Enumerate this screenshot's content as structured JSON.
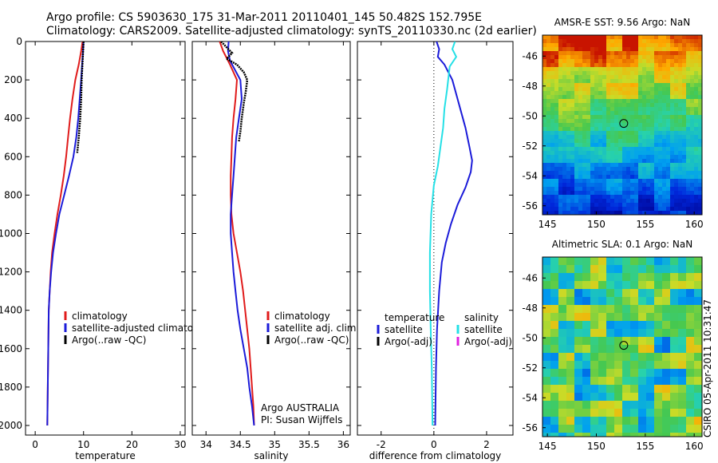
{
  "header": {
    "line1": "Argo profile: CS 5903630_175 31-Mar-2011 20110401_145 50.482S 152.795E",
    "line2": "Climatology: CARS2009. Satellite-adjusted climatology: synTS_20110330.nc (2d earlier)"
  },
  "side_label": "CSIRO 05-Apr-2011 10:31:47",
  "colors": {
    "climatology": "#e01b1b",
    "satellite": "#1b1bd9",
    "argo": "#000000",
    "satellite_salinity": "#24e0e6",
    "argo_adj_salinity": "#e020e0"
  },
  "chart_data": [
    {
      "type": "line",
      "xlabel": "temperature",
      "ylabel": "",
      "xlim": [
        -2,
        31
      ],
      "ylim": [
        2050,
        0
      ],
      "x_ticks": [
        0,
        10,
        20,
        30
      ],
      "y_ticks": [
        0,
        200,
        400,
        600,
        800,
        1000,
        1200,
        1400,
        1600,
        1800,
        2000
      ],
      "legend": [
        "climatology",
        "satellite-adjusted climatology",
        "Argo(..raw -QC)"
      ],
      "series": [
        {
          "name": "climatology",
          "color": "#e01b1b",
          "points": [
            [
              9.8,
              0
            ],
            [
              9.5,
              50
            ],
            [
              9.0,
              120
            ],
            [
              8.3,
              200
            ],
            [
              7.7,
              300
            ],
            [
              7.2,
              400
            ],
            [
              6.8,
              500
            ],
            [
              6.4,
              600
            ],
            [
              5.9,
              700
            ],
            [
              5.3,
              800
            ],
            [
              4.6,
              900
            ],
            [
              4.0,
              1000
            ],
            [
              3.5,
              1100
            ],
            [
              3.2,
              1200
            ],
            [
              3.0,
              1300
            ],
            [
              2.8,
              1400
            ],
            [
              2.7,
              1600
            ],
            [
              2.6,
              1800
            ],
            [
              2.5,
              2000
            ]
          ]
        },
        {
          "name": "satellite-adjusted climatology",
          "color": "#1b1bd9",
          "points": [
            [
              10.0,
              0
            ],
            [
              9.9,
              50
            ],
            [
              9.7,
              120
            ],
            [
              9.5,
              200
            ],
            [
              9.2,
              300
            ],
            [
              8.9,
              400
            ],
            [
              8.5,
              500
            ],
            [
              7.9,
              600
            ],
            [
              7.0,
              700
            ],
            [
              6.0,
              800
            ],
            [
              5.0,
              900
            ],
            [
              4.3,
              1000
            ],
            [
              3.7,
              1100
            ],
            [
              3.3,
              1200
            ],
            [
              3.0,
              1300
            ],
            [
              2.8,
              1400
            ],
            [
              2.7,
              1600
            ],
            [
              2.6,
              1800
            ],
            [
              2.5,
              2000
            ]
          ]
        },
        {
          "name": "Argo(..raw -QC)",
          "color": "#000000",
          "points": [
            [
              10.0,
              0
            ],
            [
              9.9,
              50
            ],
            [
              9.8,
              100
            ],
            [
              9.6,
              200
            ],
            [
              9.5,
              300
            ],
            [
              9.3,
              400
            ],
            [
              9.0,
              500
            ],
            [
              8.7,
              580
            ]
          ]
        }
      ]
    },
    {
      "type": "line",
      "xlabel": "salinity",
      "ylabel": "",
      "xlim": [
        33.8,
        36.1
      ],
      "ylim": [
        2050,
        0
      ],
      "x_ticks": [
        34,
        34.5,
        35,
        35.5,
        36
      ],
      "legend": [
        "climatology",
        "satellite adj. clim.",
        "Argo(..raw -QC)"
      ],
      "annotation": [
        "Argo AUSTRALIA",
        "PI: Susan Wijffels"
      ],
      "series": [
        {
          "name": "climatology",
          "color": "#e01b1b",
          "points": [
            [
              34.2,
              0
            ],
            [
              34.25,
              50
            ],
            [
              34.35,
              120
            ],
            [
              34.45,
              200
            ],
            [
              34.43,
              300
            ],
            [
              34.4,
              400
            ],
            [
              34.38,
              500
            ],
            [
              34.37,
              600
            ],
            [
              34.36,
              700
            ],
            [
              34.36,
              800
            ],
            [
              34.37,
              900
            ],
            [
              34.4,
              1000
            ],
            [
              34.45,
              1100
            ],
            [
              34.5,
              1200
            ],
            [
              34.54,
              1300
            ],
            [
              34.57,
              1400
            ],
            [
              34.6,
              1500
            ],
            [
              34.63,
              1600
            ],
            [
              34.65,
              1700
            ],
            [
              34.67,
              1800
            ],
            [
              34.69,
              1900
            ],
            [
              34.7,
              2000
            ]
          ]
        },
        {
          "name": "satellite adj. clim.",
          "color": "#1b1bd9",
          "points": [
            [
              34.33,
              0
            ],
            [
              34.32,
              50
            ],
            [
              34.35,
              100
            ],
            [
              34.5,
              200
            ],
            [
              34.52,
              300
            ],
            [
              34.48,
              400
            ],
            [
              34.44,
              500
            ],
            [
              34.42,
              600
            ],
            [
              34.4,
              700
            ],
            [
              34.38,
              800
            ],
            [
              34.36,
              900
            ],
            [
              34.36,
              1000
            ],
            [
              34.38,
              1100
            ],
            [
              34.4,
              1200
            ],
            [
              34.43,
              1300
            ],
            [
              34.46,
              1400
            ],
            [
              34.5,
              1500
            ],
            [
              34.55,
              1600
            ],
            [
              34.6,
              1700
            ],
            [
              34.63,
              1800
            ],
            [
              34.67,
              1900
            ],
            [
              34.7,
              2000
            ]
          ]
        },
        {
          "name": "Argo(..raw -QC)",
          "color": "#000000",
          "points": [
            [
              34.22,
              0
            ],
            [
              34.3,
              30
            ],
            [
              34.38,
              60
            ],
            [
              34.3,
              90
            ],
            [
              34.45,
              120
            ],
            [
              34.55,
              160
            ],
            [
              34.6,
              200
            ],
            [
              34.58,
              260
            ],
            [
              34.55,
              320
            ],
            [
              34.52,
              400
            ],
            [
              34.5,
              470
            ],
            [
              34.48,
              520
            ]
          ]
        }
      ]
    },
    {
      "type": "line",
      "xlabel": "difference from climatology",
      "ylabel": "",
      "xlim": [
        -2.9,
        3.0
      ],
      "ylim": [
        2050,
        0
      ],
      "x_ticks": [
        -2,
        0,
        2
      ],
      "legend": [
        {
          "group": "temperature",
          "entries": [
            "satellite",
            "Argo(-adj)"
          ]
        },
        {
          "group": "salinity",
          "entries": [
            "satellite",
            "Argo(-adj)"
          ]
        }
      ],
      "series": [
        {
          "name": "temperature satellite",
          "color": "#1b1bd9",
          "points": [
            [
              0.1,
              0
            ],
            [
              0.2,
              40
            ],
            [
              0.15,
              80
            ],
            [
              0.4,
              120
            ],
            [
              0.7,
              200
            ],
            [
              0.8,
              250
            ],
            [
              1.0,
              350
            ],
            [
              1.2,
              450
            ],
            [
              1.35,
              550
            ],
            [
              1.45,
              620
            ],
            [
              1.4,
              680
            ],
            [
              1.2,
              760
            ],
            [
              0.9,
              850
            ],
            [
              0.65,
              950
            ],
            [
              0.45,
              1050
            ],
            [
              0.3,
              1150
            ],
            [
              0.2,
              1300
            ],
            [
              0.12,
              1500
            ],
            [
              0.08,
              1700
            ],
            [
              0.05,
              2000
            ]
          ]
        },
        {
          "name": "salinity satellite",
          "color": "#24e0e6",
          "points": [
            [
              0.8,
              0
            ],
            [
              0.7,
              40
            ],
            [
              0.85,
              80
            ],
            [
              0.6,
              130
            ],
            [
              0.5,
              250
            ],
            [
              0.4,
              350
            ],
            [
              0.35,
              450
            ],
            [
              0.25,
              550
            ],
            [
              0.15,
              650
            ],
            [
              0.0,
              750
            ],
            [
              -0.1,
              900
            ],
            [
              -0.15,
              1100
            ],
            [
              -0.15,
              1300
            ],
            [
              -0.12,
              1500
            ],
            [
              -0.08,
              1700
            ],
            [
              -0.05,
              2000
            ]
          ]
        }
      ]
    }
  ],
  "maps": [
    {
      "title": "AMSR-E SST: 9.56 Argo: NaN",
      "x_ticks": [
        "145",
        "150",
        "155",
        "160"
      ],
      "y_ticks": [
        "-46",
        "-48",
        "-50",
        "-52",
        "-54",
        "-56"
      ],
      "marker_lon": 152.8,
      "marker_lat": -50.5
    },
    {
      "title": "Altimetric SLA: 0.1 Argo: NaN",
      "x_ticks": [
        "145",
        "150",
        "155",
        "160"
      ],
      "y_ticks": [
        "-46",
        "-48",
        "-50",
        "-52",
        "-54",
        "-56"
      ],
      "marker_lon": 152.8,
      "marker_lat": -50.5
    }
  ]
}
